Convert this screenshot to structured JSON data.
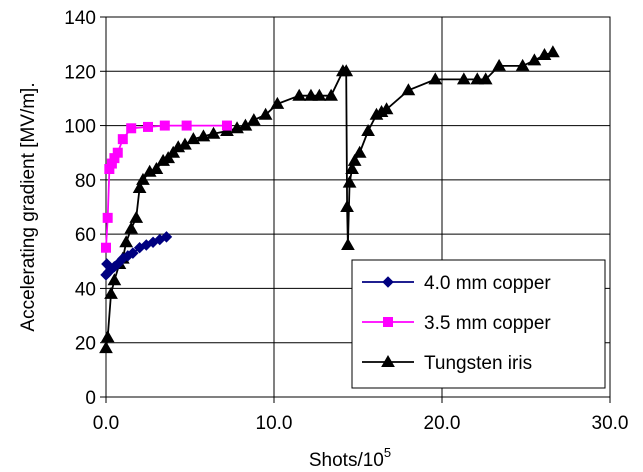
{
  "chart_data": {
    "type": "line",
    "title": "",
    "xlabel": "Shots/10",
    "xlabel_superscript": "5",
    "ylabel": "Accelerating gradient [MV/m].",
    "xlim": [
      0,
      30
    ],
    "ylim": [
      0,
      140
    ],
    "x_ticks": [
      "0.0",
      "10.0",
      "20.0",
      "30.0"
    ],
    "y_ticks": [
      "0",
      "20",
      "40",
      "60",
      "80",
      "100",
      "120",
      "140"
    ],
    "x_tick_values": [
      0,
      10,
      20,
      30
    ],
    "y_tick_values": [
      0,
      20,
      40,
      60,
      80,
      100,
      120,
      140
    ],
    "grid": true,
    "legend_position": "bottom-right",
    "series": [
      {
        "name": "4.0 mm copper",
        "color": "#000080",
        "marker": "diamond",
        "points": [
          [
            0.0,
            45
          ],
          [
            0.05,
            49
          ],
          [
            0.15,
            46
          ],
          [
            0.3,
            47
          ],
          [
            0.5,
            48
          ],
          [
            0.7,
            49
          ],
          [
            1.0,
            51
          ],
          [
            1.3,
            52
          ],
          [
            1.6,
            53
          ],
          [
            2.0,
            55
          ],
          [
            2.4,
            56
          ],
          [
            2.8,
            57
          ],
          [
            3.2,
            58
          ],
          [
            3.6,
            59
          ]
        ]
      },
      {
        "name": "3.5 mm copper",
        "color": "#FF00FF",
        "marker": "square",
        "points": [
          [
            0.0,
            55
          ],
          [
            0.1,
            66
          ],
          [
            0.2,
            84
          ],
          [
            0.35,
            86
          ],
          [
            0.5,
            88
          ],
          [
            0.7,
            90
          ],
          [
            1.0,
            95
          ],
          [
            1.5,
            99
          ],
          [
            2.5,
            99.5
          ],
          [
            3.5,
            100
          ],
          [
            4.8,
            100
          ],
          [
            7.2,
            100
          ]
        ]
      },
      {
        "name": "Tungsten iris",
        "color": "#000000",
        "marker": "triangle",
        "points": [
          [
            0.0,
            18
          ],
          [
            0.1,
            22
          ],
          [
            0.3,
            38
          ],
          [
            0.5,
            43
          ],
          [
            0.8,
            49
          ],
          [
            1.0,
            51
          ],
          [
            1.2,
            57
          ],
          [
            1.5,
            62
          ],
          [
            1.8,
            66
          ],
          [
            2.0,
            77
          ],
          [
            2.2,
            80
          ],
          [
            2.6,
            83
          ],
          [
            3.0,
            84
          ],
          [
            3.4,
            87
          ],
          [
            3.7,
            88
          ],
          [
            4.0,
            90
          ],
          [
            4.3,
            92
          ],
          [
            4.7,
            93
          ],
          [
            5.2,
            95
          ],
          [
            5.8,
            96
          ],
          [
            6.4,
            97
          ],
          [
            7.2,
            98
          ],
          [
            7.8,
            99
          ],
          [
            8.3,
            100
          ],
          [
            8.8,
            102
          ],
          [
            9.5,
            104
          ],
          [
            10.2,
            108
          ],
          [
            11.5,
            111
          ],
          [
            12.2,
            111
          ],
          [
            12.7,
            111
          ],
          [
            13.4,
            111
          ],
          [
            14.1,
            120
          ],
          [
            14.3,
            120
          ],
          [
            14.35,
            70
          ],
          [
            14.4,
            56
          ],
          [
            14.5,
            79
          ],
          [
            14.65,
            84
          ],
          [
            14.8,
            87
          ],
          [
            15.1,
            90
          ],
          [
            15.6,
            98
          ],
          [
            16.1,
            104
          ],
          [
            16.4,
            105
          ],
          [
            16.7,
            106
          ],
          [
            18.0,
            113
          ],
          [
            19.6,
            117
          ],
          [
            21.3,
            117
          ],
          [
            22.1,
            117
          ],
          [
            22.6,
            117
          ],
          [
            23.4,
            122
          ],
          [
            24.8,
            122
          ],
          [
            25.5,
            124
          ],
          [
            26.1,
            126
          ],
          [
            26.6,
            127
          ]
        ]
      }
    ]
  }
}
